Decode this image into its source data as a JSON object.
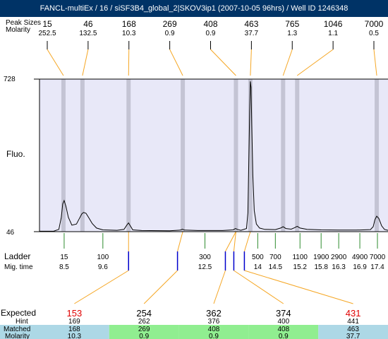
{
  "window": {
    "title": "FANCL-multiEx / 16 / siSF3B4_global_2|SKOV3ip1 (2007-10-05 96hrs) / Well ID 1246348"
  },
  "labels": {
    "peak_sizes_row": "Peak Sizes",
    "molarity_row": "Molarity",
    "fluo_axis": "Fluo.",
    "ladder_row": "Ladder",
    "migtime_row": "Mig. time",
    "expected_row": "Expected",
    "hint_row": "Hint",
    "matched_row": "Matched",
    "bottom_molarity_row": "Molarity"
  },
  "colors": {
    "title_bg": "#003366",
    "plot_bg": "#e8e8f8",
    "peak_band": "#c4c4d4",
    "leader": "#f5a623",
    "ladder_tick": "#2e8b2e",
    "marker": "#0000cc",
    "expected_miss": "#e00000",
    "cell_blue": "#add8e6",
    "cell_green": "#90ee90"
  },
  "chart_data": {
    "type": "line",
    "ylabel": "Fluo.",
    "ylim": [
      46,
      728
    ],
    "xlim": [
      7.8,
      17.7
    ],
    "yticks": [
      "728",
      "46"
    ],
    "trace": [
      [
        7.8,
        48
      ],
      [
        8.2,
        48
      ],
      [
        8.35,
        56
      ],
      [
        8.42,
        110
      ],
      [
        8.46,
        170
      ],
      [
        8.5,
        185
      ],
      [
        8.55,
        160
      ],
      [
        8.62,
        110
      ],
      [
        8.72,
        75
      ],
      [
        8.85,
        80
      ],
      [
        8.95,
        110
      ],
      [
        9.0,
        125
      ],
      [
        9.05,
        132
      ],
      [
        9.12,
        128
      ],
      [
        9.2,
        108
      ],
      [
        9.3,
        82
      ],
      [
        9.42,
        62
      ],
      [
        9.6,
        54
      ],
      [
        10.0,
        52
      ],
      [
        10.2,
        56
      ],
      [
        10.28,
        75
      ],
      [
        10.33,
        85
      ],
      [
        10.38,
        72
      ],
      [
        10.45,
        54
      ],
      [
        10.7,
        51
      ],
      [
        11.5,
        50
      ],
      [
        11.8,
        53
      ],
      [
        11.86,
        57
      ],
      [
        11.92,
        53
      ],
      [
        12.3,
        51
      ],
      [
        13.0,
        51
      ],
      [
        13.3,
        54
      ],
      [
        13.37,
        60
      ],
      [
        13.42,
        56
      ],
      [
        13.52,
        52
      ],
      [
        13.68,
        60
      ],
      [
        13.72,
        130
      ],
      [
        13.75,
        400
      ],
      [
        13.77,
        580
      ],
      [
        13.79,
        718
      ],
      [
        13.81,
        690
      ],
      [
        13.83,
        520
      ],
      [
        13.86,
        300
      ],
      [
        13.9,
        140
      ],
      [
        13.96,
        80
      ],
      [
        14.05,
        62
      ],
      [
        14.2,
        56
      ],
      [
        14.5,
        55
      ],
      [
        14.65,
        62
      ],
      [
        14.72,
        68
      ],
      [
        14.8,
        60
      ],
      [
        14.95,
        57
      ],
      [
        15.05,
        64
      ],
      [
        15.12,
        70
      ],
      [
        15.2,
        62
      ],
      [
        15.4,
        56
      ],
      [
        15.8,
        54
      ],
      [
        16.3,
        53
      ],
      [
        16.8,
        53
      ],
      [
        17.2,
        55
      ],
      [
        17.28,
        68
      ],
      [
        17.33,
        100
      ],
      [
        17.38,
        115
      ],
      [
        17.44,
        105
      ],
      [
        17.52,
        72
      ],
      [
        17.6,
        56
      ],
      [
        17.7,
        52
      ]
    ],
    "peaks": [
      {
        "time": 8.48,
        "size": "15",
        "molarity": "252.5"
      },
      {
        "time": 9.02,
        "size": "46",
        "molarity": "132.5"
      },
      {
        "time": 10.33,
        "size": "168",
        "molarity": "10.3"
      },
      {
        "time": 11.87,
        "size": "269",
        "molarity": "0.9"
      },
      {
        "time": 13.38,
        "size": "408",
        "molarity": "0.9"
      },
      {
        "time": 13.79,
        "size": "463",
        "molarity": "37.7"
      },
      {
        "time": 14.72,
        "size": "765",
        "molarity": "1.3"
      },
      {
        "time": 15.12,
        "size": "1046",
        "molarity": "1.1"
      },
      {
        "time": 17.38,
        "size": "7000",
        "molarity": "0.5"
      }
    ],
    "ladder": [
      {
        "size": "15",
        "time": "8.5",
        "t": 8.5
      },
      {
        "size": "100",
        "time": "9.6",
        "t": 9.6
      },
      {
        "size": "300",
        "time": "12.5",
        "t": 12.5
      },
      {
        "size": "500",
        "time": "14",
        "t": 14.0
      },
      {
        "size": "700",
        "time": "14.5",
        "t": 14.5
      },
      {
        "size": "1100",
        "time": "15.2",
        "t": 15.2
      },
      {
        "size": "1900",
        "time": "15.8",
        "t": 15.8
      },
      {
        "size": "2900",
        "time": "16.3",
        "t": 16.3
      },
      {
        "size": "4900",
        "time": "16.9",
        "t": 16.9
      },
      {
        "size": "7000",
        "time": "17.4",
        "t": 17.4
      }
    ],
    "expected_markers": [
      10.33,
      11.72,
      13.08,
      13.32,
      13.62
    ],
    "expected": [
      {
        "expected": "153",
        "hint": "169",
        "matched": "168",
        "molarity": "10.3",
        "missing": true,
        "cell": "blue",
        "peak": 2,
        "marker": 0
      },
      {
        "expected": "254",
        "hint": "262",
        "matched": "269",
        "molarity": "0.9",
        "missing": false,
        "cell": "green",
        "peak": 3,
        "marker": 1
      },
      {
        "expected": "362",
        "hint": "376",
        "matched": "408",
        "molarity": "0.9",
        "missing": false,
        "cell": "green",
        "peak": 4,
        "marker": 2
      },
      {
        "expected": "374",
        "hint": "400",
        "matched": "408",
        "molarity": "0.9",
        "missing": false,
        "cell": "green",
        "peak": 4,
        "marker": 3
      },
      {
        "expected": "431",
        "hint": "441",
        "matched": "463",
        "molarity": "37.7",
        "missing": true,
        "cell": "blue",
        "peak": 5,
        "marker": 4
      }
    ]
  }
}
